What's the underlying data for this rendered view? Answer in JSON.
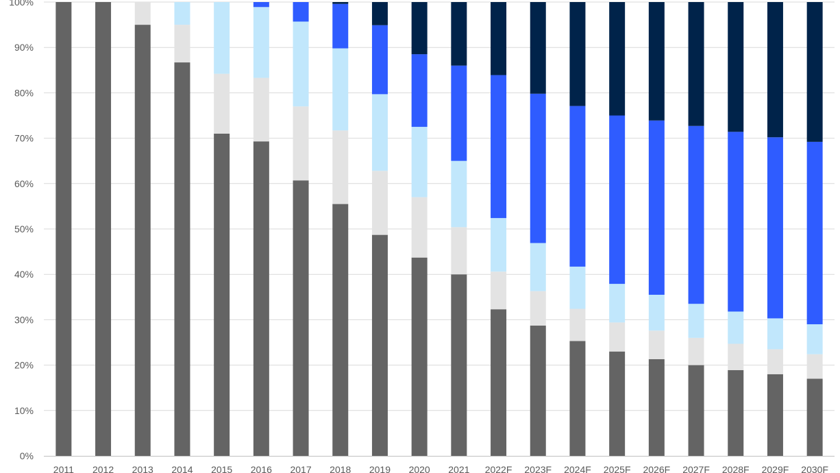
{
  "chart_data": {
    "type": "bar",
    "stacked": true,
    "percent_stacked": true,
    "categories": [
      "2011",
      "2012",
      "2013",
      "2014",
      "2015",
      "2016",
      "2017",
      "2018",
      "2019",
      "2020",
      "2021",
      "2022F",
      "2023F",
      "2024F",
      "2025F",
      "2026F",
      "2027F",
      "2028F",
      "2029F",
      "2030F"
    ],
    "y_ticks": [
      "0%",
      "10%",
      "20%",
      "30%",
      "40%",
      "50%",
      "60%",
      "70%",
      "80%",
      "90%",
      "100%"
    ],
    "ylim": [
      0,
      100
    ],
    "grid": true,
    "legend": "none",
    "series": [
      {
        "color": "#646464",
        "values": [
          100,
          100,
          95,
          86.7,
          71,
          69.3,
          60.7,
          55.5,
          48.7,
          43.7,
          40,
          32.3,
          28.7,
          25.3,
          23,
          21.3,
          20,
          18.9,
          18,
          17
        ]
      },
      {
        "color": "#e3e3e3",
        "values": [
          0,
          0,
          5,
          8.3,
          13.2,
          14,
          16.3,
          16.2,
          14.1,
          13.3,
          10.4,
          8.3,
          7.6,
          7.1,
          6.4,
          6.3,
          6,
          5.8,
          5.5,
          5.4
        ]
      },
      {
        "color": "#c1e7fc",
        "values": [
          0,
          0,
          0,
          5,
          15.8,
          15.6,
          18.7,
          18.1,
          16.9,
          15.5,
          14.6,
          11.8,
          10.6,
          9.3,
          8.5,
          7.9,
          7.5,
          7.1,
          6.8,
          6.6
        ]
      },
      {
        "color": "#2f5cff",
        "values": [
          0,
          0,
          0,
          0,
          0,
          1.1,
          4.3,
          9.8,
          15.2,
          16,
          21,
          31.5,
          32.9,
          35.4,
          37.1,
          38.4,
          39.2,
          39.6,
          39.9,
          40.2
        ]
      },
      {
        "color": "#00234a",
        "values": [
          0,
          0,
          0,
          0,
          0,
          0,
          0,
          0.4,
          5.1,
          11.5,
          14,
          16.1,
          20.2,
          22.9,
          25,
          26.1,
          27.3,
          28.6,
          29.8,
          30.8
        ]
      }
    ]
  }
}
